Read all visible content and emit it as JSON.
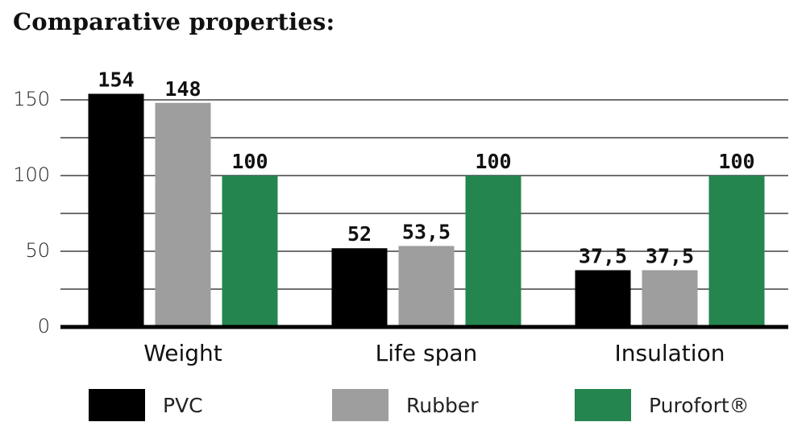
{
  "chart_data": {
    "type": "bar",
    "title": "Comparative properties:",
    "categories": [
      "Weight",
      "Life span",
      "Insulation"
    ],
    "series": [
      {
        "name": "PVC",
        "color": "#000000",
        "values": [
          154,
          52,
          37.5
        ],
        "labels": [
          "154",
          "52",
          "37,5"
        ]
      },
      {
        "name": "Rubber",
        "color": "#9e9e9e",
        "values": [
          148,
          53.5,
          37.5
        ],
        "labels": [
          "148",
          "53,5",
          "37,5"
        ]
      },
      {
        "name": "Purofort®",
        "color": "#24854f",
        "values": [
          100,
          100,
          100
        ],
        "labels": [
          "100",
          "100",
          "100"
        ]
      }
    ],
    "yticks": [
      "0",
      "50",
      "100",
      "150"
    ],
    "ylim": [
      0,
      160
    ],
    "grid": true,
    "legend": "bottom"
  }
}
